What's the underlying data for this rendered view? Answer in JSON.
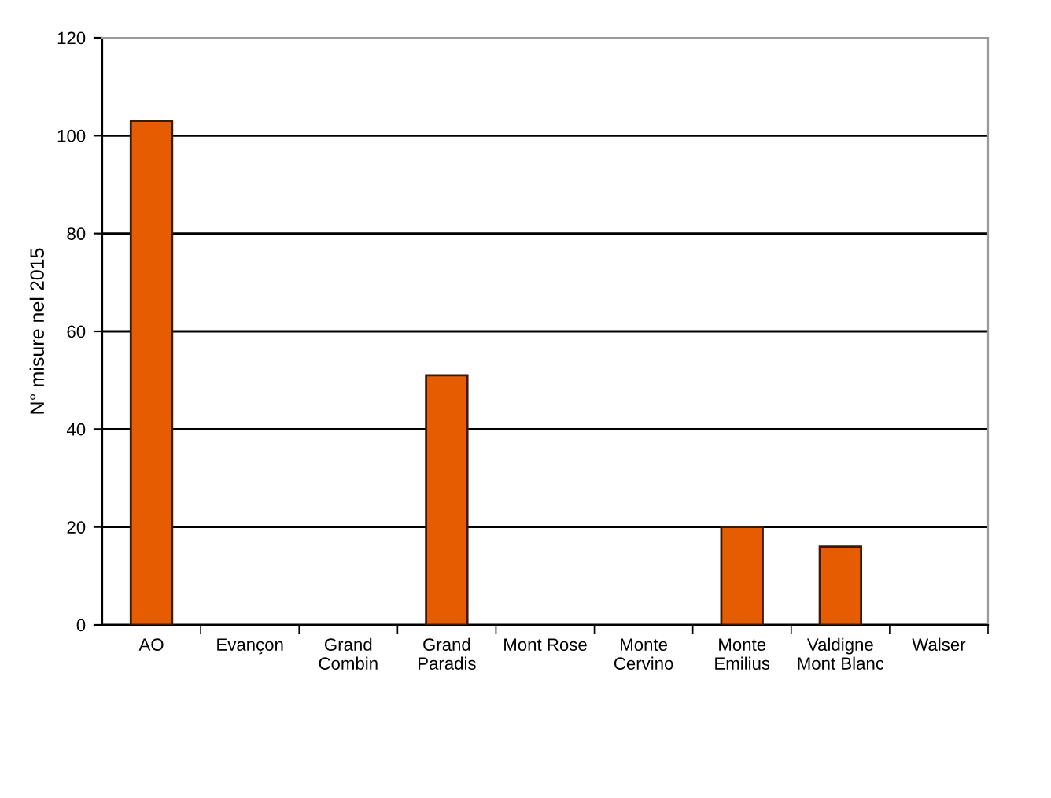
{
  "chart_data": {
    "type": "bar",
    "ylabel": "N° misure nel 2015",
    "categories": [
      "AO",
      "Evançon",
      "Grand\nCombin",
      "Grand\nParadis",
      "Mont Rose",
      "Monte\nCervino",
      "Monte\nEmilius",
      "Valdigne\nMont Blanc",
      "Walser"
    ],
    "values": [
      103,
      0,
      0,
      51,
      0,
      0,
      20,
      16,
      0
    ],
    "color": "#e65c00",
    "ylim": [
      0,
      120
    ],
    "yticks": [
      0,
      20,
      40,
      60,
      80,
      100,
      120
    ],
    "grid": "y",
    "legend": false
  }
}
